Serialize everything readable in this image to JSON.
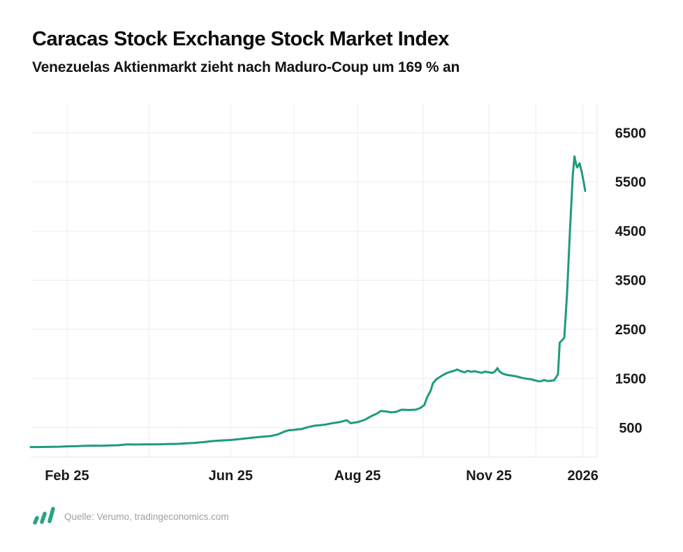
{
  "header": {
    "title": "Caracas Stock Exchange Stock Market Index",
    "subtitle": "Venezuelas Aktienmarkt zieht nach Maduro-Coup um 169 % an"
  },
  "footer": {
    "source": "Quelle: Verumo, tradingeconomics.com",
    "logo_icon": "verumo-sparkline-icon",
    "logo_color": "#2ba385"
  },
  "colors": {
    "line": "#1f9b7d",
    "grid": "#ececec",
    "axis_text": "#1a1a1a",
    "background": "#ffffff"
  },
  "chart_data": {
    "type": "line",
    "title": "Caracas Stock Exchange Stock Market Index",
    "subtitle": "Venezuelas Aktienmarkt zieht nach Maduro-Coup um 169 % an",
    "line_color": "#1f9b7d",
    "grid": true,
    "legend": "none",
    "ylabel": "",
    "xlabel": "",
    "ylim": [
      -100,
      7100
    ],
    "y_ticks": [
      6500,
      5500,
      4500,
      3500,
      2500,
      1500,
      500
    ],
    "x_ticks": [
      {
        "label": "Feb 25",
        "x": 0.064
      },
      {
        "label": "Jun 25",
        "x": 0.353
      },
      {
        "label": "Aug 25",
        "x": 0.577
      },
      {
        "label": "Nov 25",
        "x": 0.809
      },
      {
        "label": "2026",
        "x": 0.975
      }
    ],
    "grid_x": [
      0.064,
      0.209,
      0.353,
      0.465,
      0.577,
      0.693,
      0.809,
      0.892,
      0.975
    ],
    "points": [
      [
        0.0,
        105
      ],
      [
        0.01,
        104
      ],
      [
        0.02,
        106
      ],
      [
        0.03,
        108
      ],
      [
        0.04,
        110
      ],
      [
        0.05,
        112
      ],
      [
        0.064,
        118
      ],
      [
        0.08,
        122
      ],
      [
        0.095,
        128
      ],
      [
        0.11,
        133
      ],
      [
        0.125,
        130
      ],
      [
        0.14,
        138
      ],
      [
        0.155,
        142
      ],
      [
        0.17,
        158
      ],
      [
        0.185,
        155
      ],
      [
        0.2,
        160
      ],
      [
        0.215,
        158
      ],
      [
        0.23,
        162
      ],
      [
        0.245,
        165
      ],
      [
        0.26,
        170
      ],
      [
        0.275,
        180
      ],
      [
        0.29,
        190
      ],
      [
        0.305,
        205
      ],
      [
        0.32,
        225
      ],
      [
        0.335,
        238
      ],
      [
        0.353,
        248
      ],
      [
        0.37,
        268
      ],
      [
        0.385,
        288
      ],
      [
        0.4,
        305
      ],
      [
        0.412,
        318
      ],
      [
        0.424,
        330
      ],
      [
        0.436,
        360
      ],
      [
        0.448,
        420
      ],
      [
        0.455,
        445
      ],
      [
        0.462,
        450
      ],
      [
        0.47,
        462
      ],
      [
        0.478,
        470
      ],
      [
        0.486,
        500
      ],
      [
        0.494,
        520
      ],
      [
        0.502,
        540
      ],
      [
        0.51,
        548
      ],
      [
        0.52,
        560
      ],
      [
        0.53,
        585
      ],
      [
        0.545,
        612
      ],
      [
        0.558,
        650
      ],
      [
        0.565,
        590
      ],
      [
        0.577,
        612
      ],
      [
        0.59,
        660
      ],
      [
        0.6,
        725
      ],
      [
        0.612,
        790
      ],
      [
        0.618,
        838
      ],
      [
        0.63,
        825
      ],
      [
        0.636,
        810
      ],
      [
        0.645,
        820
      ],
      [
        0.655,
        866
      ],
      [
        0.668,
        858
      ],
      [
        0.68,
        866
      ],
      [
        0.688,
        900
      ],
      [
        0.695,
        960
      ],
      [
        0.7,
        1120
      ],
      [
        0.706,
        1250
      ],
      [
        0.71,
        1400
      ],
      [
        0.716,
        1480
      ],
      [
        0.72,
        1513
      ],
      [
        0.728,
        1570
      ],
      [
        0.735,
        1612
      ],
      [
        0.742,
        1640
      ],
      [
        0.747,
        1654
      ],
      [
        0.753,
        1682
      ],
      [
        0.76,
        1645
      ],
      [
        0.766,
        1626
      ],
      [
        0.772,
        1655
      ],
      [
        0.778,
        1635
      ],
      [
        0.784,
        1648
      ],
      [
        0.79,
        1630
      ],
      [
        0.796,
        1615
      ],
      [
        0.802,
        1640
      ],
      [
        0.809,
        1625
      ],
      [
        0.815,
        1612
      ],
      [
        0.82,
        1645
      ],
      [
        0.824,
        1710
      ],
      [
        0.828,
        1640
      ],
      [
        0.833,
        1598
      ],
      [
        0.84,
        1575
      ],
      [
        0.848,
        1560
      ],
      [
        0.858,
        1542
      ],
      [
        0.868,
        1510
      ],
      [
        0.876,
        1495
      ],
      [
        0.883,
        1485
      ],
      [
        0.89,
        1462
      ],
      [
        0.896,
        1445
      ],
      [
        0.901,
        1443
      ],
      [
        0.906,
        1468
      ],
      [
        0.911,
        1452
      ],
      [
        0.916,
        1448
      ],
      [
        0.92,
        1457
      ],
      [
        0.924,
        1462
      ],
      [
        0.928,
        1530
      ],
      [
        0.931,
        1585
      ],
      [
        0.934,
        2230
      ],
      [
        0.938,
        2274
      ],
      [
        0.942,
        2330
      ],
      [
        0.947,
        3231
      ],
      [
        0.952,
        4499
      ],
      [
        0.957,
        5625
      ],
      [
        0.96,
        6020
      ],
      [
        0.963,
        5850
      ],
      [
        0.965,
        5795
      ],
      [
        0.969,
        5879
      ],
      [
        0.973,
        5696
      ],
      [
        0.977,
        5457
      ],
      [
        0.979,
        5316
      ]
    ]
  }
}
